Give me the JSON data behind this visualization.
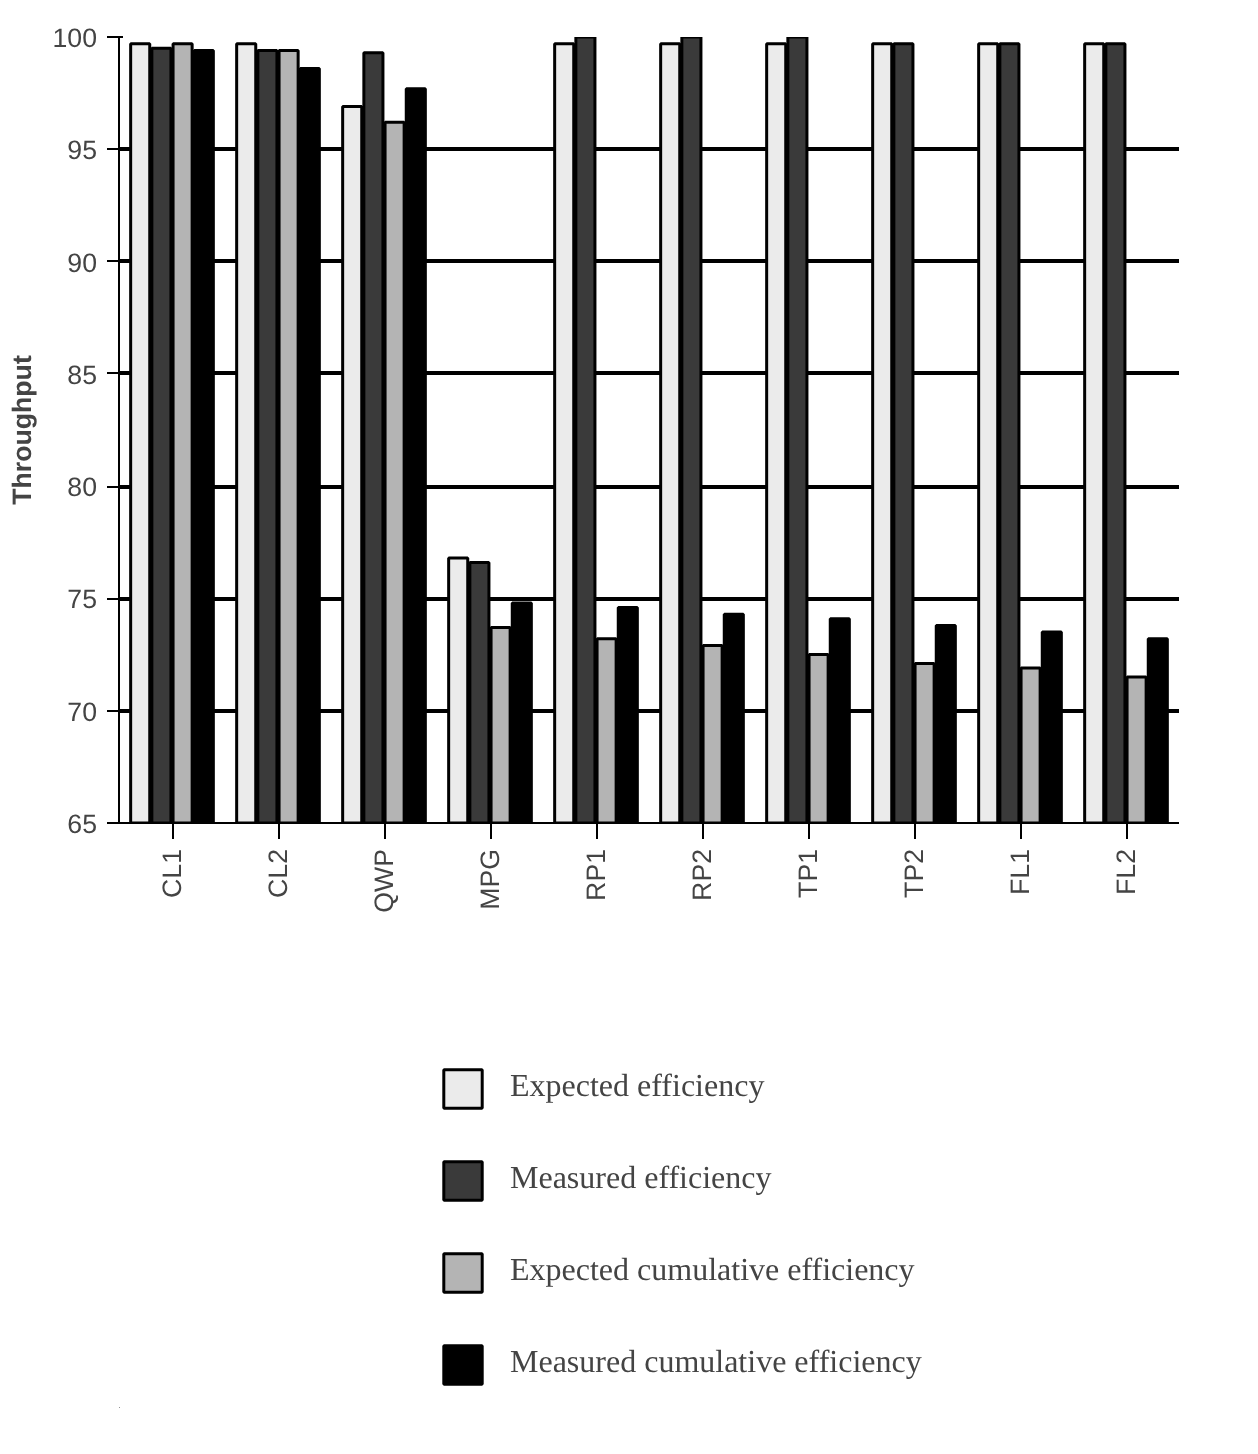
{
  "chart_data": {
    "type": "bar",
    "ylabel": "Throughput",
    "categories": [
      "CL1",
      "CL2",
      "QWP",
      "MPG",
      "RP1",
      "RP2",
      "TP1",
      "TP2",
      "FL1",
      "FL2"
    ],
    "series": [
      {
        "name": "Expected efficiency",
        "color": "#ebebeb",
        "values": [
          99.7,
          99.7,
          96.9,
          76.8,
          99.7,
          99.7,
          99.7,
          99.7,
          99.7,
          99.7
        ]
      },
      {
        "name": "Measured efficiency",
        "color": "#3a3a3a",
        "values": [
          99.5,
          99.4,
          99.3,
          76.6,
          100,
          100,
          100,
          99.7,
          99.7,
          99.7
        ]
      },
      {
        "name": "Expected cumulative efficiency",
        "color": "#b4b4b4",
        "values": [
          99.7,
          99.4,
          96.2,
          73.7,
          73.2,
          72.9,
          72.5,
          72.1,
          71.9,
          71.5
        ]
      },
      {
        "name": "Measured cumulative efficiency",
        "color": "#000000",
        "values": [
          99.4,
          98.6,
          97.7,
          74.8,
          74.6,
          74.3,
          74.1,
          73.8,
          73.5,
          73.2
        ]
      }
    ],
    "ylim": [
      65,
      100
    ],
    "yticks": [
      65,
      70,
      75,
      80,
      85,
      90,
      95,
      100
    ],
    "grid": "y",
    "legend": "bottom"
  }
}
